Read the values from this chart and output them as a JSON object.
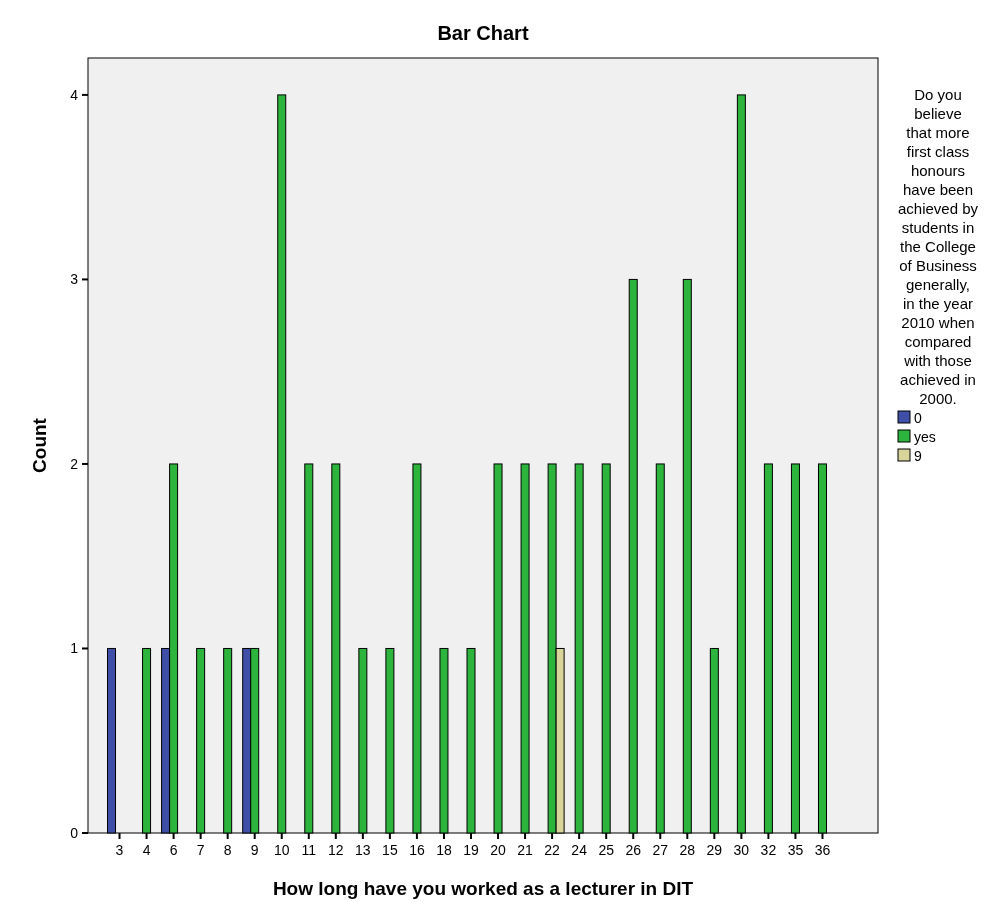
{
  "chart_data": {
    "type": "bar",
    "title": "Bar Chart",
    "xlabel": "How long have you worked as a lecturer in DIT",
    "ylabel": "Count",
    "legend_title": "Do you believe that more first class honours have been achieved by students in the College of Business generally, in the year 2010 when compared with those achieved in 2000.",
    "categories": [
      "3",
      "4",
      "6",
      "7",
      "8",
      "9",
      "10",
      "11",
      "12",
      "13",
      "15",
      "16",
      "18",
      "19",
      "20",
      "21",
      "22",
      "24",
      "25",
      "26",
      "27",
      "28",
      "29",
      "30",
      "32",
      "35",
      "36"
    ],
    "series": [
      {
        "name": "0",
        "color": "#3f4fa8",
        "values": [
          1,
          null,
          1,
          null,
          null,
          1,
          null,
          null,
          null,
          null,
          null,
          null,
          null,
          null,
          null,
          null,
          null,
          null,
          null,
          null,
          null,
          null,
          null,
          null,
          null,
          null,
          null
        ]
      },
      {
        "name": "yes",
        "color": "#2db43c",
        "values": [
          null,
          1,
          2,
          1,
          1,
          1,
          4,
          2,
          2,
          1,
          1,
          2,
          1,
          1,
          2,
          2,
          2,
          2,
          2,
          3,
          2,
          3,
          1,
          4,
          2,
          2,
          2
        ]
      },
      {
        "name": "9",
        "color": "#d8d49a",
        "values": [
          null,
          null,
          null,
          null,
          null,
          null,
          null,
          null,
          null,
          null,
          null,
          null,
          null,
          null,
          null,
          null,
          1,
          null,
          null,
          null,
          null,
          null,
          null,
          null,
          null,
          null,
          null
        ]
      }
    ],
    "ylim": [
      0,
      4.2
    ],
    "yticks": [
      0,
      1,
      2,
      3,
      4
    ],
    "legend": "right"
  }
}
